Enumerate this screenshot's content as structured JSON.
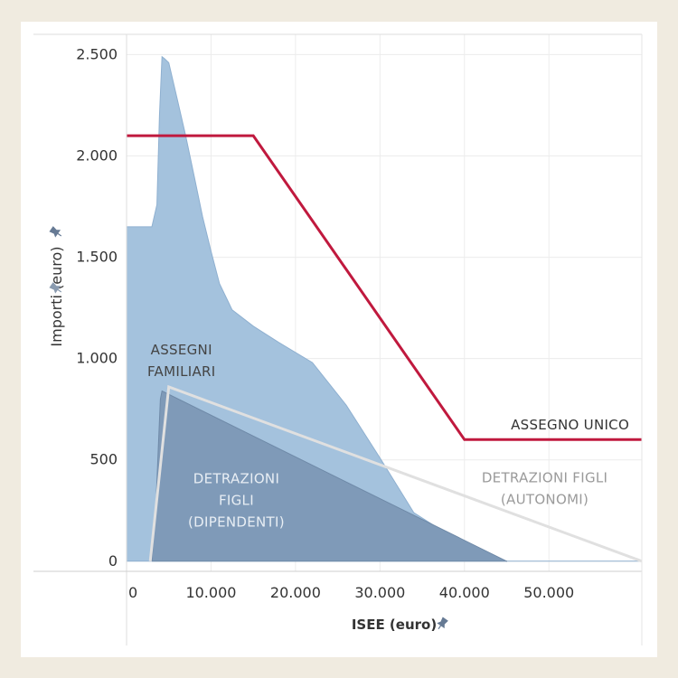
{
  "chart_data": {
    "type": "area",
    "xlabel": "ISEE (euro)",
    "ylabel": "Importi (euro)",
    "xlim": [
      0,
      61000
    ],
    "ylim": [
      -50,
      2600
    ],
    "x_ticks": [
      {
        "value": 0,
        "label": "0"
      },
      {
        "value": 10000,
        "label": "10.000"
      },
      {
        "value": 20000,
        "label": "20.000"
      },
      {
        "value": 30000,
        "label": "30.000"
      },
      {
        "value": 40000,
        "label": "40.000"
      },
      {
        "value": 50000,
        "label": "50.000"
      }
    ],
    "y_ticks": [
      {
        "value": 0,
        "label": "0"
      },
      {
        "value": 500,
        "label": "500"
      },
      {
        "value": 1000,
        "label": "1.000"
      },
      {
        "value": 1500,
        "label": "1.500"
      },
      {
        "value": 2000,
        "label": "2.000"
      },
      {
        "value": 2500,
        "label": "2.500"
      }
    ],
    "grid": true,
    "colors": {
      "assegni_familiari": "#a4c2dd",
      "detrazioni_dipendenti": "#7f9ab8",
      "assegno_unico": "#c0193e",
      "detrazioni_autonomi": "#e0e0e0"
    },
    "series": [
      {
        "name": "ASSEGNI FAMILIARI",
        "kind": "area",
        "x": [
          0,
          1500,
          3000,
          3600,
          3900,
          4200,
          4500,
          5000,
          6000,
          7000,
          8000,
          9000,
          10000,
          11000,
          12500,
          15000,
          18000,
          22000,
          26000,
          30000,
          34000,
          37000,
          40000,
          43000,
          45000,
          61000
        ],
        "y": [
          1650,
          1650,
          1650,
          1760,
          2200,
          2490,
          2480,
          2460,
          2280,
          2100,
          1900,
          1700,
          1530,
          1370,
          1240,
          1160,
          1080,
          980,
          770,
          510,
          240,
          160,
          90,
          20,
          0,
          0
        ]
      },
      {
        "name": "DETRAZIONI FIGLI (DIPENDENTI)",
        "kind": "area",
        "x": [
          3000,
          3500,
          3800,
          4000,
          4200,
          45000
        ],
        "y": [
          0,
          300,
          600,
          800,
          840,
          0
        ]
      },
      {
        "name": "ASSEGNO UNICO",
        "kind": "line",
        "x": [
          0,
          15000,
          40000,
          61000
        ],
        "y": [
          2100,
          2100,
          600,
          600
        ]
      },
      {
        "name": "DETRAZIONI FIGLI (AUTONOMI)",
        "kind": "line",
        "x": [
          2800,
          5000,
          61000
        ],
        "y": [
          0,
          860,
          0
        ]
      }
    ],
    "annotations": [
      {
        "lines": [
          "ASSEGNI",
          "FAMILIARI"
        ],
        "x": 6500,
        "y": 1020,
        "color": "#444444"
      },
      {
        "lines": [
          "DETRAZIONI",
          "FIGLI",
          "(DIPENDENTI)"
        ],
        "x": 13000,
        "y": 385,
        "color": "#e8eef4"
      },
      {
        "lines": [
          "ASSEGNO UNICO"
        ],
        "x": 52500,
        "y": 650,
        "color": "#333333"
      },
      {
        "lines": [
          "DETRAZIONI FIGLI",
          "(AUTONOMI)"
        ],
        "x": 49500,
        "y": 390,
        "color": "#9a9a9a"
      }
    ]
  }
}
